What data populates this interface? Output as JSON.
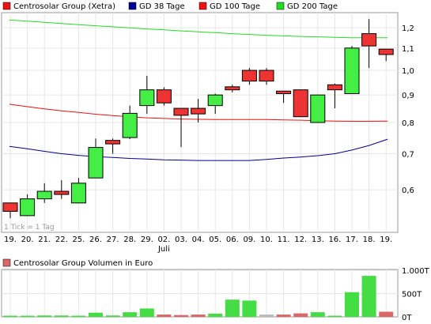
{
  "chart_data": [
    {
      "type": "candlestick",
      "title": "",
      "legend": [
        {
          "name": "Centrosolar Group (Xetra)",
          "color": "#ee1111"
        },
        {
          "name": "GD 38 Tage",
          "color": "#000099"
        },
        {
          "name": "GD 100 Tage",
          "color": "#ee1111"
        },
        {
          "name": "GD 200 Tage",
          "color": "#22dd22"
        }
      ],
      "legend_position": "top",
      "x_labels": [
        "19.",
        "20.",
        "21.",
        "22.",
        "25.",
        "26.",
        "27.",
        "28.",
        "29.",
        "02.",
        "03.",
        "04.",
        "05.",
        "06.",
        "09.",
        "10.",
        "11.",
        "12.",
        "13.",
        "16.",
        "17.",
        "18.",
        "19."
      ],
      "month_label": {
        "text": "Juli",
        "index": 9
      },
      "y_scale": "log",
      "y_ticks": [
        "1,2",
        "1,1",
        "1,0",
        "0,9",
        "0,8",
        "0,7",
        "0,6"
      ],
      "y_tick_values": [
        1.2,
        1.1,
        1.0,
        0.9,
        0.8,
        0.7,
        0.6
      ],
      "ylim": [
        0.5,
        1.28
      ],
      "grid": true,
      "tick_note": "1 Tick = 1 Tag",
      "candles": [
        {
          "open": 0.567,
          "high": 0.567,
          "low": 0.531,
          "close": 0.547
        },
        {
          "open": 0.537,
          "high": 0.588,
          "low": 0.537,
          "close": 0.577
        },
        {
          "open": 0.577,
          "high": 0.617,
          "low": 0.567,
          "close": 0.596
        },
        {
          "open": 0.596,
          "high": 0.625,
          "low": 0.577,
          "close": 0.588
        },
        {
          "open": 0.567,
          "high": 0.631,
          "low": 0.567,
          "close": 0.617
        },
        {
          "open": 0.631,
          "high": 0.747,
          "low": 0.631,
          "close": 0.719
        },
        {
          "open": 0.741,
          "high": 0.747,
          "low": 0.7,
          "close": 0.73
        },
        {
          "open": 0.75,
          "high": 0.86,
          "low": 0.745,
          "close": 0.832
        },
        {
          "open": 0.86,
          "high": 0.977,
          "low": 0.83,
          "close": 0.92
        },
        {
          "open": 0.92,
          "high": 0.93,
          "low": 0.86,
          "close": 0.87
        },
        {
          "open": 0.85,
          "high": 0.85,
          "low": 0.72,
          "close": 0.825
        },
        {
          "open": 0.85,
          "high": 0.885,
          "low": 0.8,
          "close": 0.83
        },
        {
          "open": 0.86,
          "high": 0.905,
          "low": 0.83,
          "close": 0.9
        },
        {
          "open": 0.932,
          "high": 0.94,
          "low": 0.91,
          "close": 0.92
        },
        {
          "open": 1.0,
          "high": 1.01,
          "low": 0.94,
          "close": 0.955
        },
        {
          "open": 1.0,
          "high": 1.01,
          "low": 0.94,
          "close": 0.955
        },
        {
          "open": 0.915,
          "high": 0.915,
          "low": 0.87,
          "close": 0.905
        },
        {
          "open": 0.92,
          "high": 0.92,
          "low": 0.82,
          "close": 0.82
        },
        {
          "open": 0.8,
          "high": 0.9,
          "low": 0.8,
          "close": 0.9
        },
        {
          "open": 0.94,
          "high": 0.945,
          "low": 0.85,
          "close": 0.92
        },
        {
          "open": 0.905,
          "high": 1.11,
          "low": 0.905,
          "close": 1.1
        },
        {
          "open": 1.17,
          "high": 1.245,
          "low": 1.01,
          "close": 1.11
        },
        {
          "open": 1.095,
          "high": 1.095,
          "low": 1.04,
          "close": 1.07
        }
      ],
      "series": [
        {
          "name": "GD 38 Tage",
          "color": "#000099",
          "values": [
            0.722,
            0.715,
            0.707,
            0.7,
            0.695,
            0.691,
            0.689,
            0.686,
            0.684,
            0.682,
            0.681,
            0.68,
            0.68,
            0.68,
            0.68,
            0.683,
            0.687,
            0.69,
            0.694,
            0.7,
            0.711,
            0.725,
            0.745
          ]
        },
        {
          "name": "GD 100 Tage",
          "color": "#ee1111",
          "values": [
            0.865,
            0.856,
            0.848,
            0.841,
            0.835,
            0.829,
            0.824,
            0.82,
            0.816,
            0.814,
            0.812,
            0.811,
            0.81,
            0.81,
            0.81,
            0.81,
            0.809,
            0.808,
            0.806,
            0.805,
            0.804,
            0.804,
            0.805
          ]
        },
        {
          "name": "GD 200 Tage",
          "color": "#22dd22",
          "values": [
            1.24,
            1.234,
            1.228,
            1.222,
            1.216,
            1.21,
            1.205,
            1.199,
            1.194,
            1.189,
            1.184,
            1.179,
            1.175,
            1.17,
            1.166,
            1.162,
            1.159,
            1.156,
            1.154,
            1.152,
            1.15,
            1.15,
            1.15
          ]
        }
      ]
    },
    {
      "type": "bar",
      "legend": [
        {
          "name": "Centrosolar Group Volumen in Euro",
          "color": "#dd6666"
        }
      ],
      "y_ticks": [
        "1.000T",
        "500T",
        "0T"
      ],
      "y_tick_values": [
        1000,
        500,
        0
      ],
      "ylim": [
        0,
        1000
      ],
      "values": [
        25,
        25,
        30,
        30,
        25,
        90,
        30,
        100,
        180,
        50,
        40,
        50,
        70,
        370,
        350,
        50,
        50,
        75,
        100,
        25,
        530,
        880,
        110
      ],
      "colors": [
        "#44dd44",
        "#44dd44",
        "#44dd44",
        "#44dd44",
        "#44dd44",
        "#44dd44",
        "#44dd44",
        "#44dd44",
        "#44dd44",
        "#dd6666",
        "#dd6666",
        "#dd6666",
        "#44dd44",
        "#44dd44",
        "#44dd44",
        "#bbbbbb",
        "#dd6666",
        "#dd6666",
        "#44dd44",
        "#44dd44",
        "#44dd44",
        "#44dd44",
        "#dd6666"
      ]
    }
  ]
}
